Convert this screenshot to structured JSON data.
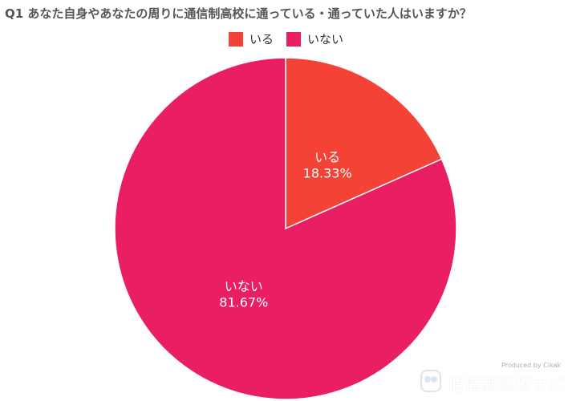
{
  "chart_data": {
    "type": "pie",
    "title": "Q1 あなた自身やあなたの周りに通信制高校に通っている・通っていた人はいますか？",
    "categories": [
      "いる",
      "いない"
    ],
    "values": [
      18.33,
      81.67
    ],
    "value_labels": [
      "18.33%",
      "81.67%"
    ],
    "colors": [
      "#F44336",
      "#E91E63"
    ],
    "legend_position": "top-center",
    "start_angle": "12 o'clock, clockwise"
  },
  "watermark": {
    "text": "通信制高校ナビ",
    "credit": "Produced by Cikak"
  }
}
